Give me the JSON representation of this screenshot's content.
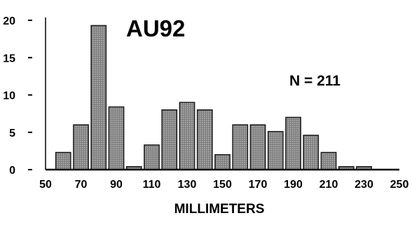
{
  "chart_data": {
    "type": "bar",
    "title": "AU92",
    "annotation": "N = 211",
    "xlabel": "MILLIMETERS",
    "ylabel": "",
    "xlim": [
      50,
      250
    ],
    "ylim": [
      0,
      20
    ],
    "xticks": [
      "50",
      "70",
      "90",
      "110",
      "130",
      "150",
      "170",
      "190",
      "210",
      "230",
      "250"
    ],
    "yticks": [
      "0",
      "5",
      "10",
      "15",
      "20"
    ],
    "bin_width": 10,
    "bins": [
      60,
      70,
      80,
      90,
      100,
      110,
      120,
      130,
      140,
      150,
      160,
      170,
      180,
      190,
      200,
      210,
      220,
      230
    ],
    "values": [
      2.3,
      6,
      19.3,
      8.4,
      0.4,
      3.3,
      8,
      9,
      8,
      2,
      6,
      6,
      5.1,
      7,
      4.6,
      2.3,
      0.4,
      0.4
    ],
    "bar_color": "#7f7f7f",
    "grid": false
  }
}
